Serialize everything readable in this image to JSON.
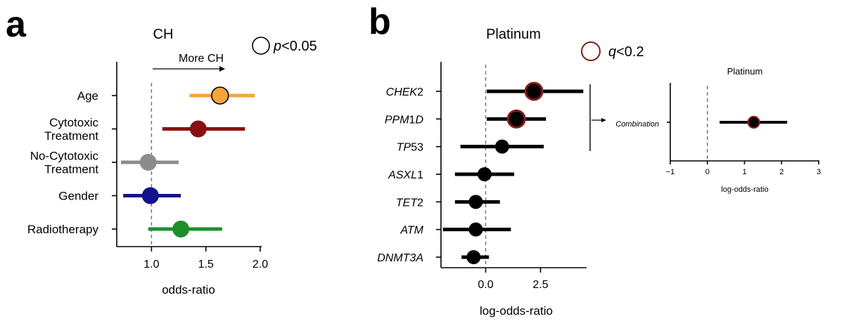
{
  "panel_a": {
    "letter": "a",
    "annotation": "More CH",
    "legend": {
      "label": "<0.05",
      "symbol": "p"
    }
  },
  "panel_b": {
    "letter": "b",
    "legend": {
      "label": "<0.2",
      "symbol": "q",
      "color": "#8b1a1a"
    },
    "combination_label": "Combination"
  },
  "chart_data": [
    {
      "type": "scatter",
      "subtype": "forest",
      "title": "CH",
      "xlabel": "odds-ratio",
      "ylabel": "",
      "xlim": [
        0.7,
        2.0
      ],
      "xticks": [
        1.0,
        1.5,
        2.0
      ],
      "xtick_labels": [
        "1.0",
        "1.5",
        "2.0"
      ],
      "reference_line": 1.0,
      "categories": [
        {
          "label": [
            "Age"
          ],
          "estimate": 1.63,
          "ci": [
            1.35,
            1.95
          ],
          "color": "#f5a53c",
          "significant": true
        },
        {
          "label": [
            "Cytotoxic",
            "Treatment"
          ],
          "estimate": 1.43,
          "ci": [
            1.1,
            1.86
          ],
          "color": "#8b0f10",
          "significant": false
        },
        {
          "label": [
            "No-Cytotoxic",
            "Treatment"
          ],
          "estimate": 0.97,
          "ci": [
            0.72,
            1.25
          ],
          "color": "#8c8c8c",
          "significant": false
        },
        {
          "label": [
            "Gender"
          ],
          "estimate": 0.99,
          "ci": [
            0.74,
            1.27
          ],
          "color": "#12128a",
          "significant": false
        },
        {
          "label": [
            "Radiotherapy"
          ],
          "estimate": 1.27,
          "ci": [
            0.97,
            1.65
          ],
          "color": "#1f8f2a",
          "significant": false
        }
      ]
    },
    {
      "type": "scatter",
      "subtype": "forest",
      "title": "Platinum",
      "xlabel": "log-odds-ratio",
      "ylabel": "",
      "xlim": [
        -2.1,
        4.6
      ],
      "xticks": [
        0.0,
        2.5
      ],
      "xtick_labels": [
        "0.0",
        "2.5"
      ],
      "reference_line": 0.0,
      "categories": [
        {
          "label": [
            {
              "t": "CHEK",
              "i": true
            },
            {
              "t": "2",
              "i": false
            }
          ],
          "estimate": 2.2,
          "ci": [
            0.05,
            4.45
          ],
          "significant": true
        },
        {
          "label": [
            {
              "t": "PPM",
              "i": true
            },
            {
              "t": "1",
              "i": false
            },
            {
              "t": "D",
              "i": true
            }
          ],
          "estimate": 1.4,
          "ci": [
            0.05,
            2.75
          ],
          "significant": true
        },
        {
          "label": [
            {
              "t": "TP",
              "i": true
            },
            {
              "t": "53",
              "i": false
            }
          ],
          "estimate": 0.75,
          "ci": [
            -1.15,
            2.65
          ],
          "significant": false
        },
        {
          "label": [
            {
              "t": "ASXL",
              "i": true
            },
            {
              "t": "1",
              "i": false
            }
          ],
          "estimate": -0.05,
          "ci": [
            -1.4,
            1.3
          ],
          "significant": false
        },
        {
          "label": [
            {
              "t": "TET",
              "i": true
            },
            {
              "t": "2",
              "i": false
            }
          ],
          "estimate": -0.45,
          "ci": [
            -1.4,
            0.65
          ],
          "significant": false
        },
        {
          "label": [
            {
              "t": "ATM",
              "i": true
            }
          ],
          "estimate": -0.45,
          "ci": [
            -1.95,
            1.15
          ],
          "significant": false
        },
        {
          "label": [
            {
              "t": "DNMT3A",
              "i": true
            }
          ],
          "estimate": -0.55,
          "ci": [
            -1.1,
            0.15
          ],
          "significant": false
        }
      ]
    },
    {
      "type": "scatter",
      "subtype": "forest",
      "title": "Platinum",
      "xlabel": "log-odds-ratio",
      "ylabel": "",
      "xlim": [
        -1,
        3
      ],
      "xticks": [
        -1,
        0,
        1,
        2,
        3
      ],
      "xtick_labels": [
        "−1",
        "0",
        "1",
        "2",
        "3"
      ],
      "reference_line": 0,
      "categories": [
        {
          "label": [
            "Combination"
          ],
          "estimate": 1.25,
          "ci": [
            0.33,
            2.15
          ],
          "significant": true
        }
      ]
    }
  ]
}
